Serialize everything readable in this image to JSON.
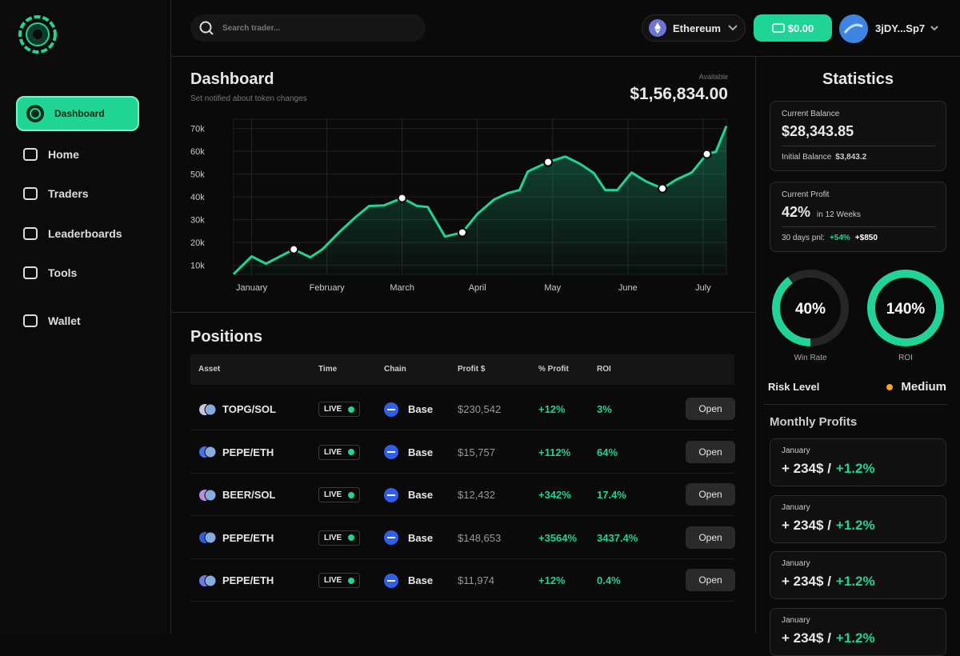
{
  "sidebar": {
    "nav": [
      {
        "label": "Dashboard",
        "active": true
      },
      {
        "label": "Home",
        "active": false
      },
      {
        "label": "Traders",
        "active": false
      },
      {
        "label": "Leaderboards",
        "active": false
      },
      {
        "label": "Tools",
        "active": false
      },
      {
        "label": "Wallet",
        "active": false
      }
    ]
  },
  "topbar": {
    "search_placeholder": "Search trader...",
    "network": "Ethereum",
    "balance": "$0.00",
    "account": "3jDY...Sp7"
  },
  "dashboard": {
    "title": "Dashboard",
    "subtitle": "Set notified about token changes",
    "available_label": "Available",
    "available": "$1,56,834.00",
    "chart": {
      "type": "line",
      "color": "#1fd494",
      "grid": true,
      "x": [
        -0.24,
        0,
        0.19,
        0.56,
        0.78,
        0.94,
        1.17,
        1.38,
        1.56,
        1.76,
        2.0,
        2.2,
        2.34,
        2.57,
        2.8,
        3.0,
        3.22,
        3.4,
        3.56,
        3.67,
        3.94,
        4.17,
        4.36,
        4.55,
        4.7,
        4.86,
        5.05,
        5.24,
        5.46,
        5.64,
        5.85,
        6.05,
        6.17,
        6.31
      ],
      "values": [
        6100,
        13900,
        10700,
        17000,
        13500,
        17000,
        24700,
        31100,
        36000,
        36300,
        39500,
        36000,
        35600,
        22600,
        24400,
        32500,
        38800,
        41600,
        43000,
        51100,
        55300,
        57700,
        54600,
        50400,
        43000,
        43000,
        50700,
        46800,
        43700,
        47500,
        50700,
        58800,
        59800,
        71100
      ],
      "highlights": {
        "x": [
          0.56,
          2.0,
          2.8,
          3.94,
          5.46,
          6.05
        ],
        "values": [
          17000,
          39500,
          24400,
          55300,
          43700,
          58800
        ]
      },
      "xlim": [
        -0.24,
        6.31
      ],
      "xticks": [
        {
          "value": 0,
          "label": "January"
        },
        {
          "value": 1,
          "label": "February"
        },
        {
          "value": 2,
          "label": "March"
        },
        {
          "value": 3,
          "label": "April"
        },
        {
          "value": 4,
          "label": "May"
        },
        {
          "value": 5,
          "label": "June"
        },
        {
          "value": 6,
          "label": "July"
        }
      ],
      "ylim": [
        6000,
        72000
      ],
      "yticks": [
        {
          "value": 10000,
          "label": "10k"
        },
        {
          "value": 20000,
          "label": "20k"
        },
        {
          "value": 30000,
          "label": "30k"
        },
        {
          "value": 40000,
          "label": "40k"
        },
        {
          "value": 50000,
          "label": "50k"
        },
        {
          "value": 60000,
          "label": "60k"
        },
        {
          "value": 70000,
          "label": "70k"
        }
      ]
    }
  },
  "positions": {
    "title": "Positions",
    "columns": [
      "Asset",
      "Time",
      "Chain",
      "Profit $",
      "% Profit",
      "ROI"
    ],
    "rows": [
      {
        "asset": "TOPG/SOL",
        "time": "LIVE",
        "chain": "Base",
        "profit": "$230,542",
        "percent": "+12%",
        "roi": "3%",
        "action": "Open"
      },
      {
        "asset": "PEPE/ETH",
        "time": "LIVE",
        "chain": "Base",
        "profit": "$15,757",
        "percent": "+112%",
        "roi": "64%",
        "action": "Open"
      },
      {
        "asset": "BEER/SOL",
        "time": "LIVE",
        "chain": "Base",
        "profit": "$12,432",
        "percent": "+342%",
        "roi": "17.4%",
        "action": "Open"
      },
      {
        "asset": "PEPE/ETH",
        "time": "LIVE",
        "chain": "Base",
        "profit": "$148,653",
        "percent": "+3564%",
        "roi": "3437.4%",
        "action": "Open"
      },
      {
        "asset": "PEPE/ETH",
        "time": "LIVE",
        "chain": "Base",
        "profit": "$11,974",
        "percent": "+12%",
        "roi": "0.4%",
        "action": "Open"
      }
    ]
  },
  "statistics": {
    "title": "Statistics",
    "balance_card": {
      "label": "Current Balance",
      "value": "$28,343.85",
      "initial_label": "Initial Balance",
      "initial_value": "$3,843.2"
    },
    "profit_card": {
      "label": "Current Profit",
      "value": "42%",
      "period": "in 12 Weeks",
      "pnl_label": "30 days pnl:",
      "pnl_percent": "+54%",
      "pnl_amount": "+$850"
    },
    "gauges": [
      {
        "value": 40,
        "label": "40%",
        "name": "Win Rate"
      },
      {
        "value": 140,
        "label": "140%",
        "name": "ROI"
      }
    ],
    "risk": {
      "label": "Risk Level",
      "value": "Medium"
    },
    "monthly_profits": {
      "title": "Monthly Profits",
      "items": [
        {
          "month": "January",
          "amount": "+ 234$ /",
          "change": "+1.2%"
        },
        {
          "month": "January",
          "amount": "+ 234$ /",
          "change": "+1.2%"
        },
        {
          "month": "January",
          "amount": "+ 234$ /",
          "change": "+1.2%"
        },
        {
          "month": "January",
          "amount": "+ 234$ /",
          "change": "+1.2%"
        }
      ]
    }
  }
}
